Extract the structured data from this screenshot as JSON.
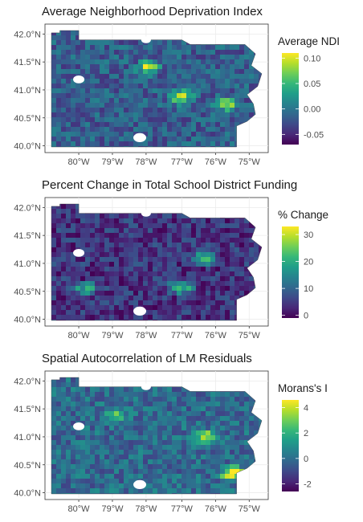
{
  "panels": [
    {
      "title": "Average Neighborhood Deprivation Index",
      "legend_title": "Average NDI",
      "legend_ticks": [
        "0.10",
        "0.05",
        "0.00",
        "-0.05"
      ],
      "legend_tick_values": [
        0.1,
        0.05,
        0.0,
        -0.05
      ],
      "legend_range": [
        -0.07,
        0.11
      ],
      "base_level": 0.3,
      "hotspots": [
        [
          0.45,
          0.3,
          0.7
        ],
        [
          0.6,
          0.55,
          0.8
        ],
        [
          0.82,
          0.62,
          0.7
        ]
      ]
    },
    {
      "title": "Percent Change in Total School District Funding",
      "legend_title": "% Change",
      "legend_ticks": [
        "30",
        "20",
        "10",
        "0"
      ],
      "legend_tick_values": [
        30,
        20,
        10,
        0
      ],
      "legend_range": [
        -1,
        33
      ],
      "base_level": 0.15,
      "hotspots": [
        [
          0.72,
          0.45,
          0.8
        ],
        [
          0.6,
          0.7,
          0.9
        ],
        [
          0.15,
          0.7,
          0.6
        ]
      ]
    },
    {
      "title": "Spatial Autocorrelation of LM Residuals",
      "legend_title": "Morans's I",
      "legend_ticks": [
        "4",
        "2",
        "0",
        "-2"
      ],
      "legend_tick_values": [
        4,
        2,
        0,
        -2
      ],
      "legend_range": [
        -2.6,
        4.6
      ],
      "base_level": 0.35,
      "hotspots": [
        [
          0.72,
          0.5,
          0.7
        ],
        [
          0.85,
          0.8,
          0.9
        ],
        [
          0.3,
          0.3,
          0.3
        ]
      ]
    }
  ],
  "axes": {
    "lat_labels": [
      "42.0°N",
      "41.5°N",
      "41.0°N",
      "40.5°N",
      "40.0°N"
    ],
    "lon_labels": [
      "80°W",
      "79°W",
      "78°W",
      "77°W",
      "76°W",
      "75°W"
    ]
  },
  "colors": {
    "viridis": [
      "#440154",
      "#482878",
      "#3e4989",
      "#31688e",
      "#26828e",
      "#1f9e89",
      "#35b779",
      "#6ece58",
      "#b5de2b",
      "#fde725"
    ],
    "panel_border": "#333333",
    "grid": "#ebebeb"
  }
}
